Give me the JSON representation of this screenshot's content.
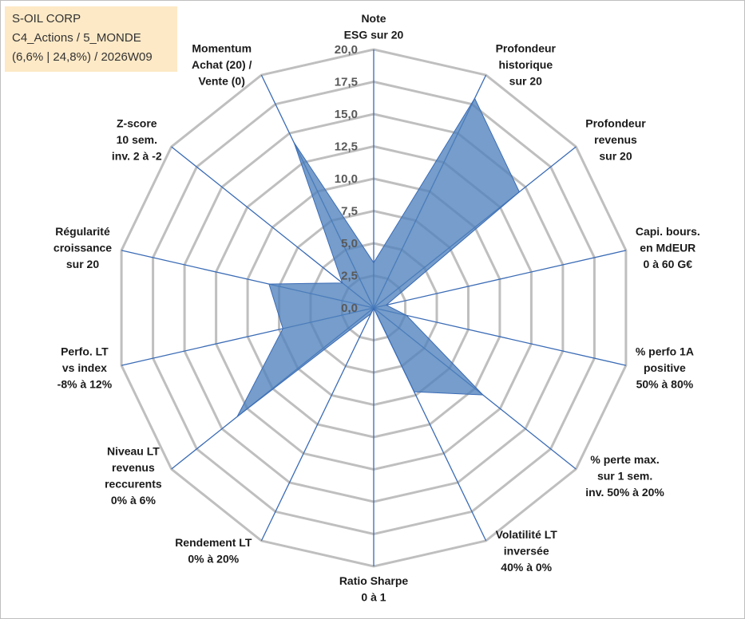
{
  "info": {
    "line1": "S-OIL CORP",
    "line2": "C4_Actions / 5_MONDE",
    "line3": "(6,6% | 24,8%) / 2026W09"
  },
  "colors": {
    "fill": "#4f81bd",
    "spoke": "#3a6bb5",
    "grid": "#bfbfbf"
  },
  "chart_data": {
    "type": "radar",
    "rmax": 20,
    "grid_levels": [
      2.5,
      5,
      7.5,
      10,
      12.5,
      15,
      17.5,
      20
    ],
    "tick_labels": [
      "0,0",
      "2,5",
      "5,0",
      "7,5",
      "10,0",
      "12,5",
      "15,0",
      "17,5",
      "20,0"
    ],
    "axes": [
      {
        "label": [
          "Note",
          "ESG sur 20"
        ],
        "value": 3.5
      },
      {
        "label": [
          "Profondeur",
          "historique",
          "sur 20"
        ],
        "value": 18.0
      },
      {
        "label": [
          "Profondeur",
          "revenus",
          "sur 20"
        ],
        "value": 14.4
      },
      {
        "label": [
          "Capi. bours.",
          "en MdEUR",
          "0 à 60 G€"
        ],
        "value": 1.0
      },
      {
        "label": [
          "% perfo 1A",
          "positive",
          "50% à 80%"
        ],
        "value": 2.6
      },
      {
        "label": [
          "% perte max.",
          "sur 1 sem.",
          "inv. 50% à 20%"
        ],
        "value": 10.8
      },
      {
        "label": [
          "Volatilité LT",
          "inversée",
          "40% à 0%"
        ],
        "value": 7.2
      },
      {
        "label": [
          "Ratio Sharpe",
          "0 à 1"
        ],
        "value": 0.0
      },
      {
        "label": [
          "Rendement LT",
          "0% à 20%"
        ],
        "value": 0.5
      },
      {
        "label": [
          "Niveau LT",
          "revenus",
          "reccurents",
          "0% à 6%"
        ],
        "value": 13.5
      },
      {
        "label": [
          "Perfo. LT",
          "vs index",
          "-8% à 12%"
        ],
        "value": 7.2
      },
      {
        "label": [
          "Régularité",
          "croissance",
          "sur 20"
        ],
        "value": 8.3
      },
      {
        "label": [
          "Z-score",
          "10 sem.",
          "inv. 2 à -2"
        ],
        "value": 3.1
      },
      {
        "label": [
          "Momentum",
          "Achat (20) /",
          "Vente (0)"
        ],
        "value": 14.2
      }
    ]
  }
}
